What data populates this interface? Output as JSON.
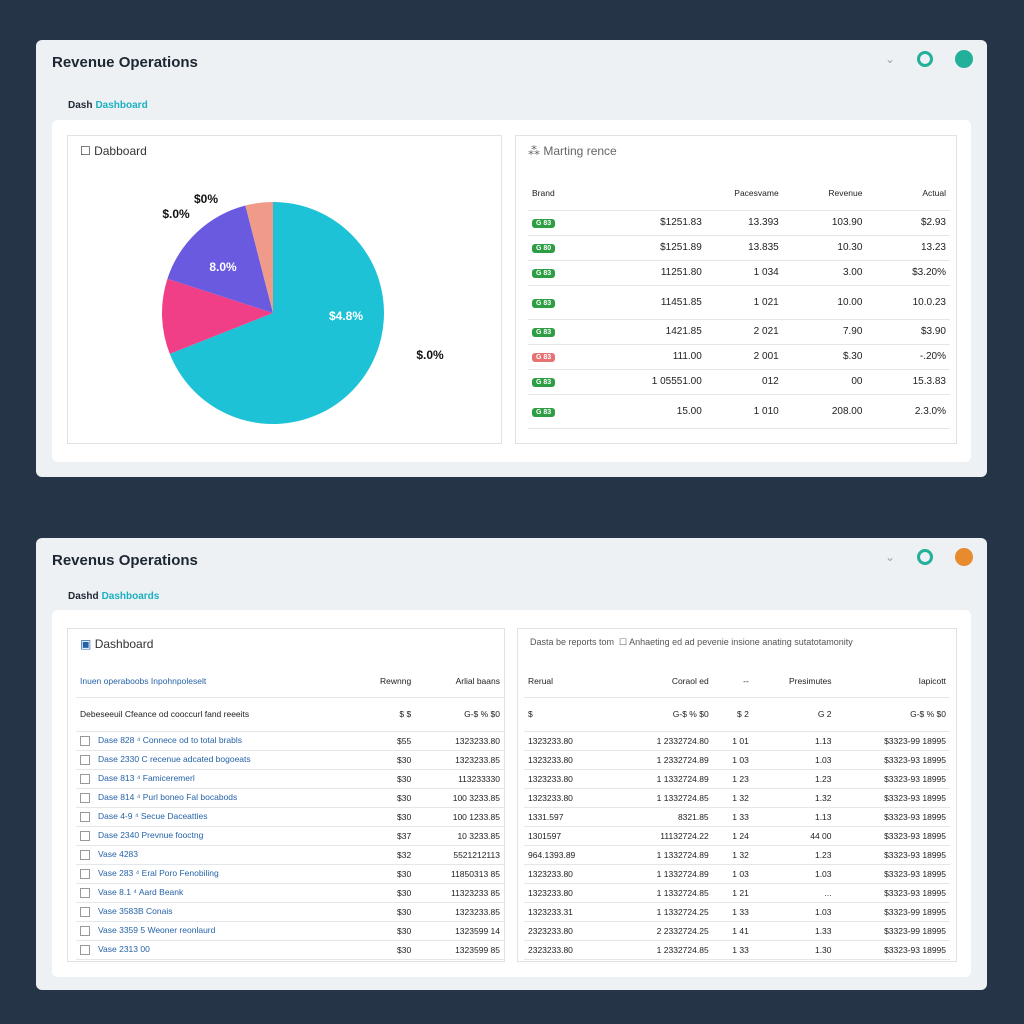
{
  "panels": [
    {
      "header": {
        "title": "Revenue Operations"
      },
      "breadcrumb": {
        "first": "Dash",
        "second": "Dashboard"
      },
      "left_card": {
        "title": "Dabboard",
        "pie": {
          "type": "pie",
          "slices": [
            {
              "value": 69,
              "color": "#1ec2d6"
            },
            {
              "value": 11,
              "color": "#f03f86"
            },
            {
              "value": 16,
              "color": "#6a5ae0"
            },
            {
              "value": 4,
              "color": "#f09a8a"
            }
          ],
          "annotations": [
            "$0%",
            "$.0%",
            "8.0%",
            "$4.8%",
            "$.0%"
          ]
        }
      },
      "right_card": {
        "title": "Marting rence",
        "table": {
          "columns": [
            "Brand",
            "Pacesvame",
            "Revenue",
            "Actual"
          ],
          "rows": [
            {
              "badge": "G 83",
              "status": "green",
              "cells": [
                "$1251.83",
                "13.393",
                "103.90",
                "$2.93"
              ]
            },
            {
              "badge": "G 80",
              "status": "green",
              "cells": [
                "$1251.89",
                "13.835",
                "10.30",
                "13.23"
              ]
            },
            {
              "badge": "G 83",
              "status": "green",
              "cells": [
                "11251.80",
                "1 034",
                "3.00",
                "$3.20%"
              ]
            },
            {
              "badge": "G 83",
              "status": "green",
              "cells": [
                "11451.85",
                "1 021",
                "10.00",
                "10.0.23"
              ]
            },
            {
              "badge": "G 83",
              "status": "green",
              "cells": [
                "1421.85",
                "2 021",
                "7.90",
                "$3.90"
              ]
            },
            {
              "badge": "G 83",
              "status": "red",
              "cells": [
                "111.00",
                "2 001",
                "$.30",
                "-.20%"
              ]
            },
            {
              "badge": "G 83",
              "status": "green",
              "cells": [
                "1 05551.00",
                "012",
                "00",
                "15.3.83"
              ]
            },
            {
              "badge": "G 83",
              "status": "green",
              "cells": [
                "15.00",
                "1 010",
                "208.00",
                "2.3.0%"
              ]
            }
          ]
        }
      }
    },
    {
      "header": {
        "title": "Revenus Operations"
      },
      "breadcrumb": {
        "first": "Dashd",
        "second": "Dashboards"
      },
      "left_card": {
        "title": "Dashboard",
        "table": {
          "columns": [
            "Inuen operaboobs Inpohnpoleselt",
            "Rewnng",
            "Arlial baans"
          ],
          "subheader": [
            "Debeseeuil  Cfeance od cooccurl fand reeeits",
            "$ $",
            "G-$ %  $0"
          ],
          "rows": [
            [
              "Dase 828 ⁴ Connece od to total brabls",
              "$55",
              "1323233.80"
            ],
            [
              "Dase 2330 C recenue adcated bogoeats",
              "$30",
              "1323233.85"
            ],
            [
              "Dase 813 ⁴ Famiceremerl",
              "$30",
              "113233330"
            ],
            [
              "Dase 814 ⁴ Purl boneo Fal bocabods",
              "$30",
              "100 3233.85"
            ],
            [
              "Dase 4-9 ⁴ Secue Daceatties",
              "$30",
              "100 1233.85"
            ],
            [
              "Dase 2340 Prevnue fooctng",
              "$37",
              "10 3233.85"
            ],
            [
              "Vase 4283",
              "$32",
              "5521212113"
            ],
            [
              "Vase 283 ⁴ Eral Poro Fenobiling",
              "$30",
              "11850313 85"
            ],
            [
              "Vase 8.1 ⁴ Aard Beank",
              "$30",
              "11323233 85"
            ],
            [
              "Vase 3583B Conais",
              "$30",
              "1323233.85"
            ],
            [
              "Vase 3359 5 Weoner reonlaurd",
              "$30",
              "1323599 14"
            ],
            [
              "Vase 2313 00",
              "$30",
              "1323599 85"
            ]
          ]
        }
      },
      "right_card": {
        "title": "Dasta be reports tom",
        "subtitle": "Anhaeting ed ad pevenie insione anating sutatotamonity",
        "table": {
          "columns": [
            "Rerual",
            "Coraol ed",
            "--",
            "Presimutes",
            "Iapicott"
          ],
          "subheader": [
            "$",
            "G-$ %  $0",
            "$ 2",
            "G 2",
            "G-$ %  $0"
          ],
          "rows": [
            [
              "1323233.80",
              "1 2332724.80",
              "1 01",
              "1.13",
              "$3323-99 18995"
            ],
            [
              "1323233.80",
              "1 2332724.89",
              "1 03",
              "1.03",
              "$3323-93 18995"
            ],
            [
              "1323233.80",
              "1 1332724.89",
              "1 23",
              "1.23",
              "$3323-93 18995"
            ],
            [
              "1323233.80",
              "1 1332724.85",
              "1 32",
              "1.32",
              "$3323-93 18995"
            ],
            [
              "1331.597",
              "8321.85",
              "1 33",
              "1.13",
              "$3323-93 18995"
            ],
            [
              "1301597",
              "11132724.22",
              "1 24",
              "44 00",
              "$3323-93 18995"
            ],
            [
              "964.1393.89",
              "1 1332724.89",
              "1 32",
              "1.23",
              "$3323-93 18995"
            ],
            [
              "1323233.80",
              "1 1332724.89",
              "1 03",
              "1.03",
              "$3323-93 18995"
            ],
            [
              "1323233.80",
              "1 1332724.85",
              "1 21",
              "...",
              "$3323-93 18995"
            ],
            [
              "1323233.31",
              "1 1332724.25",
              "1 33",
              "1.03",
              "$3323-99 18995"
            ],
            [
              "2323233.80",
              "2 2332724.25",
              "1 41",
              "1.33",
              "$3323-99 18995"
            ],
            [
              "2323233.80",
              "1 2332724.85",
              "1 33",
              "1.30",
              "$3323-93 18995"
            ]
          ]
        }
      }
    }
  ]
}
